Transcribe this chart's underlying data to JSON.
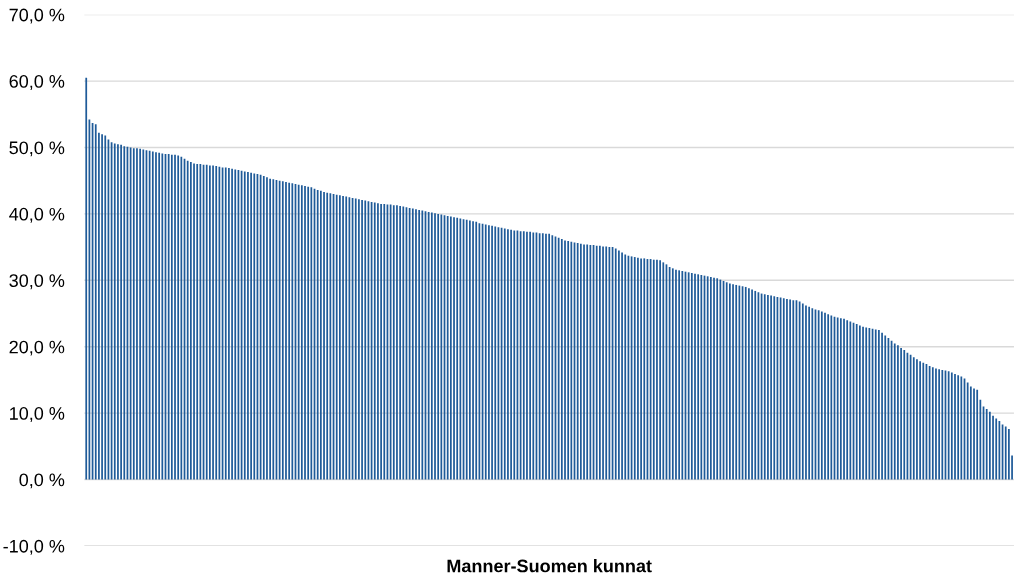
{
  "chart_data": {
    "type": "bar",
    "xlabel": "Manner-Suomen kunnat",
    "color": "#1f5b99",
    "categories": [
      null,
      null,
      null,
      null,
      null,
      null,
      null,
      null,
      null,
      null,
      null,
      null,
      null,
      null,
      null,
      null,
      null,
      null,
      null,
      null,
      null,
      null,
      null,
      null,
      null,
      null,
      null,
      null,
      null,
      null,
      null,
      null,
      null,
      null,
      null,
      null,
      null,
      null,
      null,
      null,
      null,
      null,
      null,
      null,
      null,
      null,
      null,
      null,
      null,
      null,
      null,
      null,
      null,
      null,
      null,
      null,
      null,
      null,
      null,
      null,
      null,
      null,
      null,
      null,
      null,
      null,
      null,
      null,
      null,
      null,
      null,
      null,
      null,
      null,
      null,
      null,
      null,
      null,
      null,
      null,
      null,
      null,
      null,
      null,
      null,
      null,
      null,
      null,
      null,
      null,
      null,
      null,
      null,
      null,
      null,
      null,
      null,
      null,
      null,
      null,
      null,
      null,
      null,
      null,
      null,
      null,
      null,
      null,
      null,
      null,
      null,
      null,
      null,
      null,
      null,
      null,
      null,
      null,
      null,
      null,
      null,
      null,
      null,
      null,
      null,
      null,
      null,
      null,
      null,
      null,
      null,
      null,
      null,
      null,
      null,
      null,
      null,
      null,
      null,
      null,
      null,
      null,
      null,
      null,
      null,
      null,
      null,
      null,
      null,
      null,
      null,
      null,
      null,
      null,
      null,
      null,
      null,
      null,
      null,
      null,
      null,
      null,
      null,
      null,
      null,
      null,
      null,
      null,
      null,
      null,
      null,
      null,
      null,
      null,
      null,
      null,
      null,
      null,
      null,
      null,
      null,
      null,
      null,
      null,
      null,
      null,
      null,
      null,
      null,
      null,
      null,
      null,
      null,
      null,
      null,
      null,
      null,
      null,
      null,
      null,
      null,
      null,
      null,
      null,
      null,
      null,
      null,
      null,
      null,
      null,
      null,
      null,
      null,
      null,
      null,
      null,
      null,
      null,
      null,
      null,
      null,
      null,
      null,
      null,
      null,
      null,
      null,
      null,
      null,
      null,
      null,
      null,
      null,
      null,
      null,
      null,
      null,
      null,
      null,
      null,
      null,
      null,
      null,
      null,
      null,
      null,
      null,
      null,
      null,
      null,
      null,
      null,
      null,
      null,
      null,
      null,
      null,
      null,
      null,
      null,
      null,
      null,
      null,
      null,
      null,
      null,
      null,
      null,
      null,
      null,
      null,
      null,
      null,
      null,
      null,
      null,
      null,
      null,
      null,
      null,
      null,
      null,
      null,
      null,
      null,
      null,
      null,
      null,
      null,
      null,
      null,
      null,
      null
    ],
    "values": [
      60.5,
      54.2,
      53.7,
      53.5,
      52.2,
      52.0,
      51.8,
      51.2,
      50.8,
      50.6,
      50.5,
      50.4,
      50.2,
      50.1,
      50.0,
      49.9,
      49.9,
      49.8,
      49.7,
      49.6,
      49.5,
      49.4,
      49.3,
      49.2,
      49.1,
      49.0,
      49.0,
      48.9,
      48.9,
      48.8,
      48.6,
      48.3,
      48.0,
      47.8,
      47.6,
      47.5,
      47.5,
      47.4,
      47.4,
      47.3,
      47.3,
      47.2,
      47.1,
      47.0,
      47.0,
      46.9,
      46.8,
      46.7,
      46.6,
      46.5,
      46.4,
      46.3,
      46.2,
      46.1,
      46.0,
      45.9,
      45.7,
      45.5,
      45.3,
      45.2,
      45.1,
      45.0,
      44.9,
      44.8,
      44.7,
      44.6,
      44.5,
      44.4,
      44.3,
      44.2,
      44.1,
      44.0,
      43.8,
      43.6,
      43.5,
      43.3,
      43.2,
      43.1,
      43.0,
      42.9,
      42.8,
      42.7,
      42.6,
      42.5,
      42.4,
      42.3,
      42.2,
      42.1,
      42.0,
      41.9,
      41.8,
      41.7,
      41.6,
      41.5,
      41.5,
      41.4,
      41.4,
      41.3,
      41.3,
      41.2,
      41.1,
      41.0,
      40.9,
      40.8,
      40.7,
      40.6,
      40.5,
      40.4,
      40.3,
      40.2,
      40.1,
      40.0,
      39.9,
      39.8,
      39.7,
      39.6,
      39.5,
      39.4,
      39.3,
      39.2,
      39.1,
      39.0,
      38.9,
      38.8,
      38.6,
      38.5,
      38.4,
      38.3,
      38.2,
      38.1,
      38.0,
      37.9,
      37.8,
      37.7,
      37.6,
      37.5,
      37.5,
      37.4,
      37.4,
      37.3,
      37.3,
      37.2,
      37.2,
      37.1,
      37.1,
      37.0,
      37.0,
      36.8,
      36.6,
      36.4,
      36.2,
      36.0,
      35.9,
      35.8,
      35.7,
      35.6,
      35.5,
      35.4,
      35.4,
      35.3,
      35.3,
      35.2,
      35.2,
      35.1,
      35.1,
      35.0,
      35.0,
      34.8,
      34.5,
      34.2,
      33.9,
      33.7,
      33.6,
      33.5,
      33.4,
      33.3,
      33.3,
      33.2,
      33.2,
      33.1,
      33.1,
      33.0,
      32.7,
      32.4,
      32.0,
      31.8,
      31.6,
      31.5,
      31.4,
      31.3,
      31.2,
      31.1,
      31.0,
      30.9,
      30.8,
      30.7,
      30.6,
      30.5,
      30.4,
      30.3,
      30.1,
      29.9,
      29.7,
      29.5,
      29.4,
      29.3,
      29.2,
      29.1,
      29.0,
      28.8,
      28.6,
      28.4,
      28.2,
      28.0,
      27.9,
      27.8,
      27.7,
      27.6,
      27.5,
      27.4,
      27.3,
      27.2,
      27.1,
      27.0,
      27.0,
      26.8,
      26.5,
      26.2,
      26.0,
      25.8,
      25.6,
      25.5,
      25.3,
      25.1,
      24.9,
      24.7,
      24.5,
      24.4,
      24.3,
      24.2,
      24.0,
      23.8,
      23.6,
      23.4,
      23.2,
      23.0,
      22.9,
      22.8,
      22.7,
      22.6,
      22.5,
      22.1,
      21.7,
      21.3,
      20.9,
      20.5,
      20.2,
      19.8,
      19.5,
      19.1,
      18.8,
      18.4,
      18.1,
      17.8,
      17.6,
      17.4,
      17.1,
      16.9,
      16.7,
      16.6,
      16.5,
      16.4,
      16.3,
      16.1,
      15.9,
      15.7,
      15.5,
      15.2,
      14.6,
      14.0,
      13.7,
      13.5,
      12.0,
      11.0,
      10.6,
      10.2,
      9.6,
      9.2,
      8.8,
      8.3,
      8.0,
      7.6,
      3.6
    ],
    "ylim": [
      -10,
      70
    ],
    "yticks": [
      {
        "value": -10,
        "label": "-10,0 %"
      },
      {
        "value": 0,
        "label": "0,0 %"
      },
      {
        "value": 10,
        "label": "10,0 %"
      },
      {
        "value": 20,
        "label": "20,0 %"
      },
      {
        "value": 30,
        "label": "30,0 %"
      },
      {
        "value": 40,
        "label": "40,0 %"
      },
      {
        "value": 50,
        "label": "50,0 %"
      },
      {
        "value": 60,
        "label": "60,0 %"
      },
      {
        "value": 70,
        "label": "70,0 %"
      }
    ],
    "grid": "y"
  }
}
